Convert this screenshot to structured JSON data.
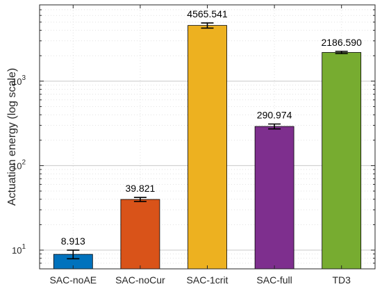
{
  "chart_data": {
    "type": "bar",
    "title": "",
    "xlabel": "",
    "ylabel": "Actuation energy (log scale)",
    "y_scale": "log",
    "ylim": [
      6,
      8000
    ],
    "grid": true,
    "categories": [
      "SAC-noAE",
      "SAC-noCur",
      "SAC-1crit",
      "SAC-full",
      "TD3"
    ],
    "values": [
      8.913,
      39.821,
      4565.541,
      290.974,
      2186.59
    ],
    "value_labels": [
      "8.913",
      "39.821",
      "4565.541",
      "290.974",
      "2186.590"
    ],
    "error_low": [
      7.9,
      37.6,
      4250,
      272,
      2120
    ],
    "error_high": [
      10.0,
      42.0,
      4880,
      311,
      2255
    ],
    "bar_colors": [
      "#0072BD",
      "#D95319",
      "#EDB120",
      "#7E2F8E",
      "#77AC30"
    ],
    "y_ticks": [
      {
        "value": 10,
        "base": "10",
        "exp": "1"
      },
      {
        "value": 100,
        "base": "10",
        "exp": "2"
      },
      {
        "value": 1000,
        "base": "10",
        "exp": "3"
      }
    ]
  }
}
